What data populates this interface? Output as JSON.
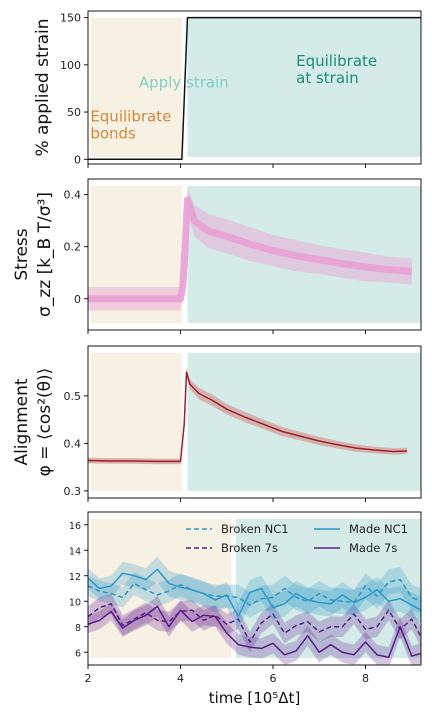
{
  "colors": {
    "equil_bg": "#f7f1e4",
    "strain_bg": "#d5ebe8",
    "apply_text": "#7fcfc0",
    "equil_text": "#d18a3c",
    "strain_text": "#1a8c78",
    "stress": "#e8a0d3",
    "alignment": "#a31f28",
    "alignment_band": "#d2a9a4",
    "nc1": "#2b98c9",
    "s7": "#5b1d8a"
  },
  "chart_data": [
    {
      "type": "line",
      "ylabel": "% applied strain",
      "xlim": [
        2,
        9.2
      ],
      "ylim": [
        -5,
        157
      ],
      "yticks": [
        0,
        50,
        100,
        150
      ],
      "ytick_labels": [
        "0",
        "50",
        "100",
        "150"
      ],
      "regions": [
        {
          "x0": 2.05,
          "x1": 4.03,
          "color": "equil_bg"
        },
        {
          "x0": 4.15,
          "x1": 9.2,
          "color": "strain_bg"
        }
      ],
      "series": [
        {
          "x": [
            2.0,
            4.03,
            4.15,
            9.2
          ],
          "y": [
            0,
            0,
            150,
            150
          ],
          "color": "#111111"
        }
      ],
      "annotations": [
        {
          "text": "Equilibrate",
          "x": 2.05,
          "y": 40,
          "color": "equil_text"
        },
        {
          "text": "bonds",
          "x": 2.05,
          "y": 22,
          "color": "equil_text"
        },
        {
          "text": "Apply strain",
          "x": 3.1,
          "y": 76,
          "color": "apply_text"
        },
        {
          "text": "Equilibrate",
          "x": 6.5,
          "y": 99,
          "color": "strain_text"
        },
        {
          "text": "at strain",
          "x": 6.5,
          "y": 81,
          "color": "strain_text"
        }
      ]
    },
    {
      "type": "line",
      "ylabel": "Stress",
      "ylabel2": "σ_zz [k_B T/σ³]",
      "xlim": [
        2,
        9.2
      ],
      "ylim": [
        -0.12,
        0.46
      ],
      "yticks": [
        0,
        0.2,
        0.4
      ],
      "ytick_labels": [
        "0",
        "0.2",
        "0.4"
      ],
      "regions": [
        {
          "x0": 2.05,
          "x1": 4.03,
          "color": "equil_bg"
        },
        {
          "x0": 4.15,
          "x1": 9.2,
          "color": "strain_bg"
        }
      ],
      "series": [
        {
          "x": [
            2.0,
            2.5,
            3.0,
            3.5,
            4.0,
            4.05,
            4.1,
            4.15,
            4.3,
            4.6,
            5.0,
            5.5,
            6.0,
            6.5,
            7.0,
            7.5,
            8.0,
            8.5,
            9.0
          ],
          "y": [
            0.0,
            0.0,
            0.0,
            0.0,
            0.0,
            0.05,
            0.2,
            0.38,
            0.3,
            0.26,
            0.24,
            0.21,
            0.185,
            0.165,
            0.15,
            0.135,
            0.122,
            0.112,
            0.105
          ],
          "band": [
            0.045,
            0.045,
            0.045,
            0.045,
            0.045,
            0.045,
            0.04,
            0.045,
            0.06,
            0.065,
            0.065,
            0.065,
            0.06,
            0.06,
            0.055,
            0.055,
            0.055,
            0.05,
            0.05
          ],
          "color": "stress"
        }
      ]
    },
    {
      "type": "line",
      "ylabel": "Alignment",
      "ylabel2": "φ = ⟨cos²(θ)⟩",
      "xlim": [
        2,
        9.2
      ],
      "ylim": [
        0.285,
        0.605
      ],
      "yticks": [
        0.3,
        0.4,
        0.5
      ],
      "ytick_labels": [
        "0.3",
        "0.4",
        "0.5"
      ],
      "regions": [
        {
          "x0": 2.05,
          "x1": 4.03,
          "color": "equil_bg"
        },
        {
          "x0": 4.15,
          "x1": 9.2,
          "color": "strain_bg"
        }
      ],
      "series": [
        {
          "x": [
            2.0,
            2.5,
            3.0,
            3.5,
            4.0,
            4.08,
            4.13,
            4.2,
            4.4,
            4.7,
            5.0,
            5.4,
            5.8,
            6.2,
            6.6,
            7.0,
            7.4,
            7.8,
            8.2,
            8.6,
            8.9
          ],
          "y": [
            0.364,
            0.363,
            0.363,
            0.362,
            0.362,
            0.44,
            0.55,
            0.525,
            0.505,
            0.49,
            0.472,
            0.455,
            0.44,
            0.425,
            0.415,
            0.405,
            0.397,
            0.39,
            0.386,
            0.383,
            0.384
          ],
          "band": [
            0.006,
            0.006,
            0.006,
            0.006,
            0.006,
            0.008,
            0.008,
            0.01,
            0.012,
            0.012,
            0.011,
            0.011,
            0.01,
            0.01,
            0.009,
            0.009,
            0.008,
            0.008,
            0.007,
            0.007,
            0.007
          ],
          "color": "alignment"
        }
      ]
    },
    {
      "type": "line",
      "xlabel": "time [10⁵Δt]",
      "xlim": [
        2,
        9.2
      ],
      "ylim": [
        5,
        17
      ],
      "yticks": [
        6,
        8,
        10,
        12,
        14,
        16
      ],
      "ytick_labels": [
        "6",
        "8",
        "10",
        "12",
        "14",
        "16"
      ],
      "xticks": [
        2,
        4,
        6,
        8
      ],
      "xtick_labels": [
        "2",
        "4",
        "6",
        "8"
      ],
      "regions": [
        {
          "x0": 2.05,
          "x1": 5.1,
          "color": "equil_bg"
        },
        {
          "x0": 5.2,
          "x1": 9.2,
          "color": "strain_bg"
        }
      ],
      "series": [
        {
          "name": "Broken NC1",
          "style": "dashed",
          "color": "nc1",
          "x": [
            2.0,
            2.25,
            2.5,
            2.75,
            3.0,
            3.25,
            3.5,
            3.75,
            4.0,
            4.25,
            4.5,
            4.75,
            5.0,
            5.25,
            5.5,
            5.75,
            6.0,
            6.25,
            6.5,
            6.75,
            7.0,
            7.25,
            7.5,
            7.75,
            8.0,
            8.25,
            8.5,
            8.75,
            9.0,
            9.2
          ],
          "y": [
            11.2,
            10.8,
            10.6,
            10.3,
            11.4,
            10.9,
            10.5,
            10.8,
            11.3,
            10.9,
            10.6,
            10.4,
            10.4,
            10.3,
            9.7,
            10.2,
            10.3,
            11.0,
            10.3,
            10.0,
            10.6,
            10.1,
            10.0,
            9.9,
            11.2,
            10.4,
            11.5,
            11.7,
            10.3,
            10.0
          ],
          "band": [
            0.8,
            0.8,
            0.8,
            0.8,
            0.9,
            0.9,
            0.9,
            0.9,
            0.9,
            0.9,
            0.9,
            0.9,
            0.9,
            1.0,
            1.0,
            1.0,
            1.0,
            1.0,
            1.0,
            1.0,
            1.0,
            1.0,
            1.0,
            1.0,
            1.0,
            1.0,
            1.0,
            1.0,
            1.0,
            1.0
          ]
        },
        {
          "name": "Broken 7s",
          "style": "dashed",
          "color": "s7",
          "x": [
            2.0,
            2.25,
            2.5,
            2.75,
            3.0,
            3.25,
            3.5,
            3.75,
            4.0,
            4.25,
            4.5,
            4.75,
            5.0,
            5.25,
            5.5,
            5.75,
            6.0,
            6.25,
            6.5,
            6.75,
            7.0,
            7.25,
            7.5,
            7.75,
            8.0,
            8.25,
            8.5,
            8.75,
            9.0,
            9.2
          ],
          "y": [
            8.8,
            9.5,
            9.8,
            8.1,
            8.6,
            9.1,
            8.5,
            8.4,
            9.2,
            9.3,
            8.5,
            8.9,
            8.2,
            8.6,
            6.8,
            8.3,
            9.0,
            7.5,
            8.1,
            8.4,
            7.6,
            8.0,
            8.0,
            9.0,
            7.8,
            8.0,
            9.3,
            7.8,
            8.6,
            7.2
          ],
          "band": [
            0.8,
            0.8,
            0.8,
            0.8,
            0.8,
            0.8,
            0.8,
            0.8,
            0.8,
            0.8,
            0.8,
            0.8,
            0.8,
            0.8,
            0.8,
            0.8,
            0.8,
            0.8,
            0.8,
            0.8,
            0.8,
            0.8,
            0.8,
            0.8,
            0.8,
            0.8,
            0.8,
            0.8,
            0.8,
            0.8
          ]
        },
        {
          "name": "Made NC1",
          "style": "solid",
          "color": "nc1",
          "x": [
            2.0,
            2.25,
            2.5,
            2.75,
            3.0,
            3.25,
            3.5,
            3.75,
            4.0,
            4.25,
            4.5,
            4.75,
            5.0,
            5.25,
            5.5,
            5.75,
            6.0,
            6.25,
            6.5,
            6.75,
            7.0,
            7.25,
            7.5,
            7.75,
            8.0,
            8.25,
            8.5,
            8.75,
            9.0,
            9.2
          ],
          "y": [
            11.8,
            11.0,
            11.2,
            12.2,
            12.0,
            11.7,
            12.5,
            11.4,
            11.1,
            10.9,
            10.6,
            10.1,
            10.5,
            8.8,
            10.7,
            11.0,
            9.5,
            9.8,
            10.6,
            10.1,
            9.9,
            9.8,
            10.5,
            9.9,
            10.3,
            10.9,
            10.0,
            10.2,
            9.7,
            9.3
          ],
          "band": [
            0.8,
            0.8,
            0.8,
            0.9,
            0.9,
            0.9,
            1.0,
            1.0,
            1.0,
            1.0,
            1.0,
            1.0,
            1.0,
            1.0,
            1.0,
            1.0,
            1.0,
            1.0,
            1.0,
            1.0,
            1.0,
            1.0,
            1.0,
            1.0,
            1.0,
            1.0,
            1.0,
            1.0,
            1.0,
            1.0
          ]
        },
        {
          "name": "Made 7s",
          "style": "solid",
          "color": "s7",
          "x": [
            2.0,
            2.25,
            2.5,
            2.75,
            3.0,
            3.25,
            3.5,
            3.75,
            4.0,
            4.25,
            4.5,
            4.75,
            5.0,
            5.25,
            5.5,
            5.75,
            6.0,
            6.25,
            6.5,
            6.75,
            7.0,
            7.25,
            7.5,
            7.75,
            8.0,
            8.25,
            8.5,
            8.75,
            9.0,
            9.2
          ],
          "y": [
            8.2,
            8.5,
            9.2,
            7.9,
            8.5,
            8.9,
            9.6,
            8.0,
            9.3,
            8.4,
            8.9,
            8.8,
            7.5,
            6.6,
            6.4,
            6.3,
            6.7,
            5.8,
            6.1,
            7.3,
            6.0,
            6.6,
            6.0,
            5.8,
            6.8,
            5.8,
            5.6,
            8.0,
            5.7,
            5.9
          ],
          "band": [
            0.7,
            0.7,
            0.7,
            0.7,
            0.8,
            0.8,
            0.8,
            0.8,
            0.8,
            0.8,
            0.8,
            0.8,
            0.8,
            0.8,
            0.8,
            0.8,
            0.8,
            0.8,
            0.8,
            0.8,
            0.8,
            0.8,
            0.8,
            0.8,
            0.8,
            0.8,
            0.8,
            0.8,
            0.8,
            0.8
          ]
        }
      ],
      "legend": {
        "placement": "top-right",
        "items": [
          {
            "label": "Broken NC1",
            "style": "dashed",
            "color": "nc1"
          },
          {
            "label": "Made NC1",
            "style": "solid",
            "color": "nc1"
          },
          {
            "label": "Broken 7s",
            "style": "dashed",
            "color": "s7"
          },
          {
            "label": "Made 7s",
            "style": "solid",
            "color": "s7"
          }
        ]
      }
    }
  ]
}
